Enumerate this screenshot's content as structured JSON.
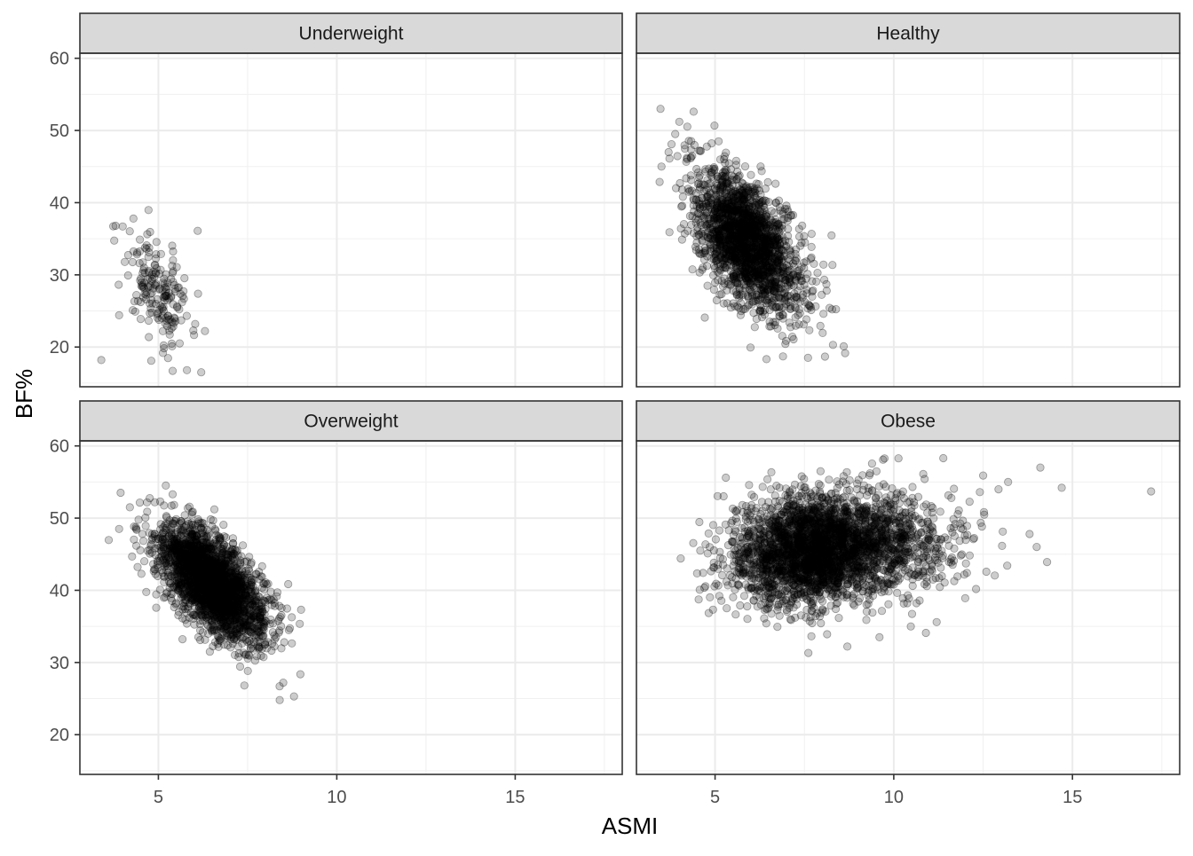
{
  "chart_data": {
    "type": "scatter",
    "title": "",
    "xlabel": "ASMI",
    "ylabel": "BF%",
    "xlim": [
      2.8,
      18.0
    ],
    "ylim": [
      14.5,
      60.7
    ],
    "x_ticks": [
      5,
      10,
      15
    ],
    "x_tick_labels": [
      "5",
      "10",
      "15"
    ],
    "y_ticks": [
      20,
      30,
      40,
      50,
      60
    ],
    "y_tick_labels": [
      "20",
      "30",
      "40",
      "50",
      "60"
    ],
    "grid": true,
    "legend": "none",
    "point_color": "#000000",
    "point_alpha": 0.2,
    "facets": [
      {
        "label": "Underweight",
        "n_points": 180,
        "center": [
          5.0,
          28.0
        ],
        "sd": [
          0.5,
          3.8
        ],
        "corr": -0.5,
        "outliers": [
          [
            3.4,
            18.2
          ],
          [
            3.8,
            36.8
          ],
          [
            4.0,
            36.7
          ],
          [
            4.3,
            37.8
          ],
          [
            6.1,
            36.1
          ],
          [
            6.2,
            16.5
          ],
          [
            5.8,
            16.8
          ],
          [
            3.9,
            24.4
          ],
          [
            4.8,
            18.1
          ],
          [
            5.4,
            16.7
          ]
        ]
      },
      {
        "label": "Healthy",
        "n_points": 2000,
        "center": [
          5.9,
          34.5
        ],
        "sd": [
          0.75,
          5.0
        ],
        "corr": -0.55,
        "outliers": [
          [
            3.5,
            45.0
          ],
          [
            4.0,
            51.2
          ],
          [
            4.4,
            52.6
          ],
          [
            8.3,
            20.3
          ],
          [
            8.6,
            20.1
          ],
          [
            7.6,
            18.5
          ],
          [
            6.9,
            18.7
          ],
          [
            5.1,
            48.5
          ],
          [
            3.7,
            47.0
          ]
        ]
      },
      {
        "label": "Overweight",
        "n_points": 2500,
        "center": [
          6.5,
          41.0
        ],
        "sd": [
          0.75,
          4.0
        ],
        "corr": -0.6,
        "outliers": [
          [
            3.9,
            48.5
          ],
          [
            4.2,
            51.5
          ],
          [
            4.9,
            52.2
          ],
          [
            5.4,
            53.3
          ],
          [
            8.8,
            25.3
          ],
          [
            8.4,
            24.8
          ],
          [
            9.0,
            37.3
          ],
          [
            8.5,
            27.2
          ]
        ]
      },
      {
        "label": "Obese",
        "n_points": 3200,
        "center": [
          8.0,
          45.8
        ],
        "sd": [
          1.2,
          3.7
        ],
        "corr": 0.12,
        "outliers": [
          [
            5.3,
            55.6
          ],
          [
            8.7,
            32.2
          ],
          [
            9.6,
            33.5
          ],
          [
            10.9,
            34.1
          ],
          [
            11.2,
            35.6
          ],
          [
            13.8,
            47.8
          ],
          [
            14.0,
            46.0
          ],
          [
            14.1,
            57.0
          ],
          [
            14.7,
            54.2
          ],
          [
            17.2,
            53.7
          ],
          [
            13.2,
            55.0
          ],
          [
            12.5,
            55.9
          ],
          [
            9.7,
            58.1
          ]
        ]
      }
    ]
  }
}
